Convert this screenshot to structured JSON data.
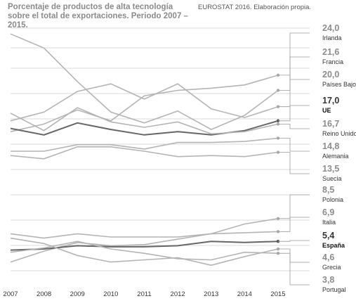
{
  "chart_data": {
    "type": "line",
    "title": "Porcentaje de productos de alta tecnología sobre el total de exportaciones. Periodo 2007 – 2015.",
    "source": "EUROSTAT 2016. Elaboración propia.",
    "x": [
      "2007",
      "2008",
      "2009",
      "2010",
      "2011",
      "2012",
      "2013",
      "2014",
      "2015"
    ],
    "ylim": [
      2.5,
      26
    ],
    "grid": true,
    "series": [
      {
        "name": "Irlanda",
        "label_value": "24,0",
        "highlight": false,
        "values": [
          25.6,
          24.3,
          21.2,
          18.4,
          17.4,
          18.5,
          16.8,
          18.1,
          20.4
        ]
      },
      {
        "name": "Francia",
        "label_value": "21,6",
        "highlight": false,
        "values": [
          17.6,
          18.4,
          20.3,
          21.0,
          19.6,
          21.0,
          18.7,
          17.9,
          18.9
        ]
      },
      {
        "name": "Países Bajos",
        "label_value": "20,0",
        "highlight": false,
        "values": [
          16.6,
          17.3,
          18.6,
          17.6,
          19.9,
          20.4,
          20.6,
          20.9,
          21.8
        ]
      },
      {
        "name": "UE",
        "label_value": "17,0",
        "highlight": true,
        "values": [
          16.9,
          16.3,
          17.4,
          16.8,
          16.3,
          16.6,
          16.3,
          16.7,
          17.6
        ]
      },
      {
        "name": "Reino Unido",
        "label_value": "16,7",
        "highlight": false,
        "values": [
          18.3,
          16.7,
          18.8,
          17.5,
          17.0,
          17.5,
          16.4,
          16.6,
          17.3
        ]
      },
      {
        "name": "Alemania",
        "label_value": "14,8",
        "highlight": false,
        "values": [
          14.8,
          14.8,
          15.4,
          15.4,
          15.0,
          15.6,
          15.6,
          15.7,
          16.0
        ]
      },
      {
        "name": "Suecia",
        "label_value": "13,5",
        "highlight": false,
        "values": [
          14.4,
          14.1,
          15.2,
          15.2,
          14.8,
          14.3,
          14.4,
          14.3,
          14.7
        ]
      },
      {
        "name": "Polonia",
        "label_value": "8,5",
        "highlight": false,
        "values": [
          4.6,
          5.6,
          6.4,
          6.1,
          6.2,
          6.7,
          7.2,
          8.1,
          8.6
        ]
      },
      {
        "name": "Italia",
        "label_value": "6,9",
        "highlight": false,
        "values": [
          7.2,
          6.8,
          7.2,
          6.9,
          6.9,
          6.9,
          7.2,
          7.3,
          7.4
        ]
      },
      {
        "name": "España",
        "label_value": "5,4",
        "highlight": true,
        "values": [
          5.7,
          5.8,
          6.1,
          6.0,
          6.0,
          6.1,
          6.5,
          6.4,
          6.5
        ]
      },
      {
        "name": "Grecia",
        "label_value": "4,6",
        "highlight": false,
        "values": [
          6.8,
          6.3,
          5.2,
          4.6,
          4.8,
          5.0,
          4.3,
          5.1,
          5.8
        ]
      },
      {
        "name": "Portugal",
        "label_value": "3,8",
        "highlight": false,
        "values": [
          5.5,
          5.9,
          6.5,
          5.8,
          5.4,
          4.9,
          4.8,
          5.5,
          5.4
        ]
      }
    ]
  }
}
